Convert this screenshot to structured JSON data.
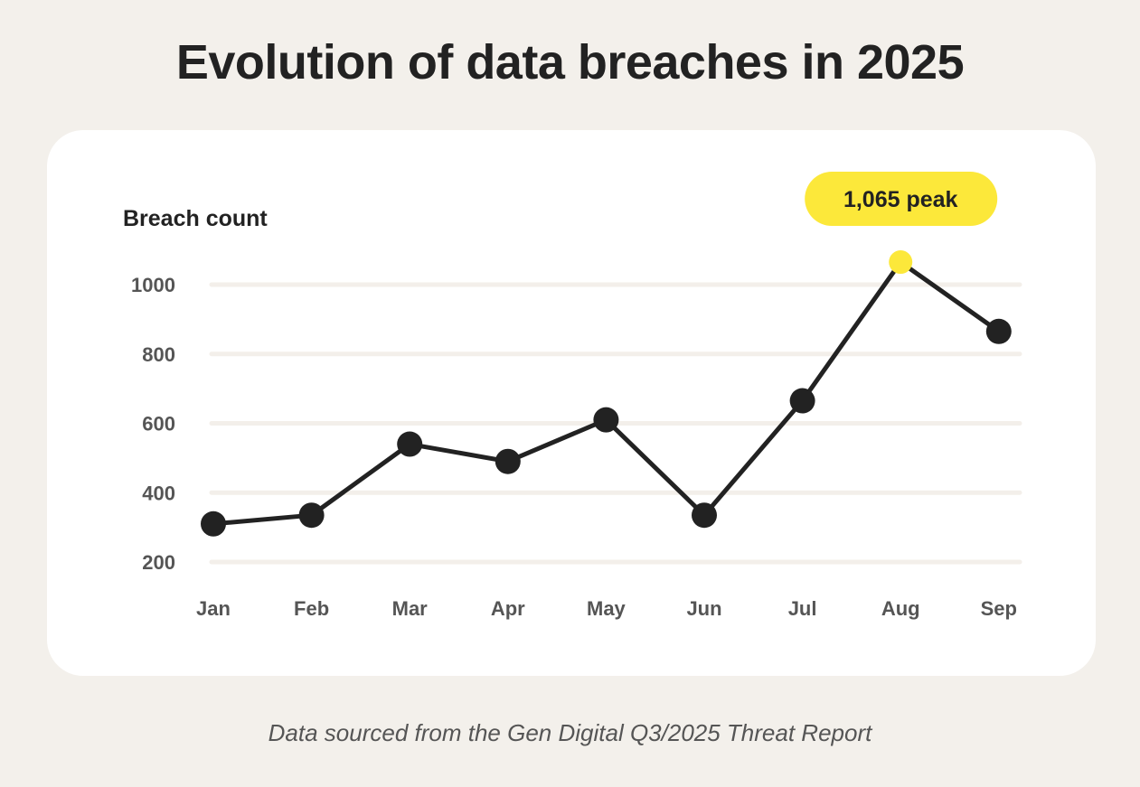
{
  "title": "Evolution of data breaches in 2025",
  "source": "Data sourced from the Gen Digital Q3/2025 Threat Report",
  "chart_data": {
    "type": "line",
    "title": "Evolution of data breaches in 2025",
    "ylabel": "Breach count",
    "xlabel": "",
    "categories": [
      "Jan",
      "Feb",
      "Mar",
      "Apr",
      "May",
      "Jun",
      "Jul",
      "Aug",
      "Sep"
    ],
    "values": [
      310,
      335,
      540,
      490,
      610,
      335,
      665,
      1065,
      865
    ],
    "yticks": [
      200,
      400,
      600,
      800,
      1000
    ],
    "ylim": [
      200,
      1000
    ],
    "grid": true,
    "annotation": {
      "category": "Aug",
      "label": "1,065 peak"
    },
    "colors": {
      "line": "#222222",
      "point": "#222222",
      "highlight": "#fce83a",
      "grid": "#f3efea",
      "background": "#f3f0eb",
      "card": "#ffffff"
    }
  }
}
